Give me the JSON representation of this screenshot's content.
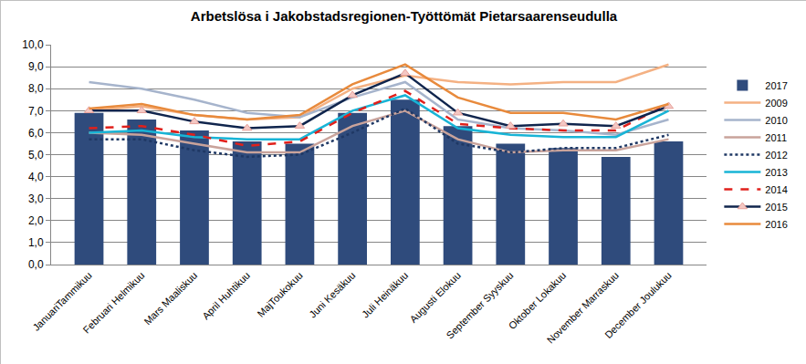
{
  "chart_data": {
    "type": "bar",
    "title": "Arbetslösa i Jakobstadsregionen-Työttömät Pietarsaarenseudulla",
    "categories": [
      "JanuariTammikuu",
      "Februari Helmikuu",
      "Mars Maaliskuu",
      "April Huhtikuu",
      "MajToukokuu",
      "Juni Kesäkuu",
      "Juli Heinäkuu",
      "Augusti Elokuu",
      "September Syyskuu",
      "Oktober Lokakuu",
      "November Marraskuu",
      "December Joulukuu"
    ],
    "series": [
      {
        "name": "2017",
        "type": "bar",
        "color": "#2f4b7c",
        "values": [
          6.9,
          6.6,
          6.1,
          5.6,
          5.5,
          6.9,
          7.5,
          6.3,
          5.5,
          5.3,
          4.9,
          5.6
        ]
      },
      {
        "name": "2009",
        "type": "line",
        "color": "#f4b183",
        "line_style": "solid",
        "values": [
          7.0,
          7.2,
          6.8,
          6.6,
          6.7,
          8.0,
          8.6,
          8.3,
          8.2,
          8.3,
          8.3,
          9.1
        ]
      },
      {
        "name": "2010",
        "type": "line",
        "color": "#a6b4cc",
        "line_style": "solid",
        "values": [
          8.3,
          8.0,
          7.5,
          6.9,
          6.7,
          7.6,
          8.3,
          6.6,
          6.2,
          6.1,
          5.9,
          6.6
        ]
      },
      {
        "name": "2011",
        "type": "line",
        "color": "#c9a39b",
        "line_style": "solid",
        "values": [
          6.0,
          5.9,
          5.5,
          5.1,
          5.1,
          6.3,
          7.0,
          5.7,
          5.1,
          5.2,
          5.2,
          5.7
        ]
      },
      {
        "name": "2012",
        "type": "line",
        "color": "#1f3864",
        "line_style": "dotted",
        "values": [
          5.7,
          5.7,
          5.2,
          4.9,
          5.0,
          6.0,
          7.1,
          5.5,
          5.1,
          5.3,
          5.3,
          5.9
        ]
      },
      {
        "name": "2013",
        "type": "line",
        "color": "#18b4d6",
        "line_style": "solid",
        "values": [
          6.0,
          6.1,
          5.8,
          5.7,
          5.7,
          7.0,
          7.7,
          6.2,
          5.9,
          5.8,
          5.8,
          7.0
        ]
      },
      {
        "name": "2014",
        "type": "line",
        "color": "#e0201b",
        "line_style": "dashed",
        "values": [
          6.2,
          6.3,
          5.9,
          5.4,
          5.6,
          6.9,
          7.9,
          6.4,
          6.2,
          6.1,
          6.1,
          7.3
        ]
      },
      {
        "name": "2015",
        "type": "line",
        "color": "#10254d",
        "line_style": "solid",
        "marker": "triangle",
        "values": [
          7.0,
          7.0,
          6.5,
          6.2,
          6.3,
          7.7,
          8.7,
          6.9,
          6.3,
          6.4,
          6.3,
          7.2
        ]
      },
      {
        "name": "2016",
        "type": "line",
        "color": "#e88a3c",
        "line_style": "solid",
        "values": [
          7.1,
          7.3,
          6.8,
          6.6,
          6.8,
          8.2,
          9.1,
          7.6,
          6.9,
          6.9,
          6.6,
          7.3
        ]
      }
    ],
    "ylim": [
      0,
      10
    ],
    "yticks": [
      {
        "value": 0,
        "label": "0,0"
      },
      {
        "value": 1,
        "label": "1,0"
      },
      {
        "value": 2,
        "label": "2,0"
      },
      {
        "value": 3,
        "label": "3,0"
      },
      {
        "value": 4,
        "label": "4,0"
      },
      {
        "value": 5,
        "label": "5,0"
      },
      {
        "value": 6,
        "label": "6,0"
      },
      {
        "value": 7,
        "label": "7,0"
      },
      {
        "value": 8,
        "label": "8,0"
      },
      {
        "value": 9,
        "label": "9,0"
      },
      {
        "value": 10,
        "label": "10,0"
      }
    ],
    "grid": true,
    "legend": "right"
  }
}
